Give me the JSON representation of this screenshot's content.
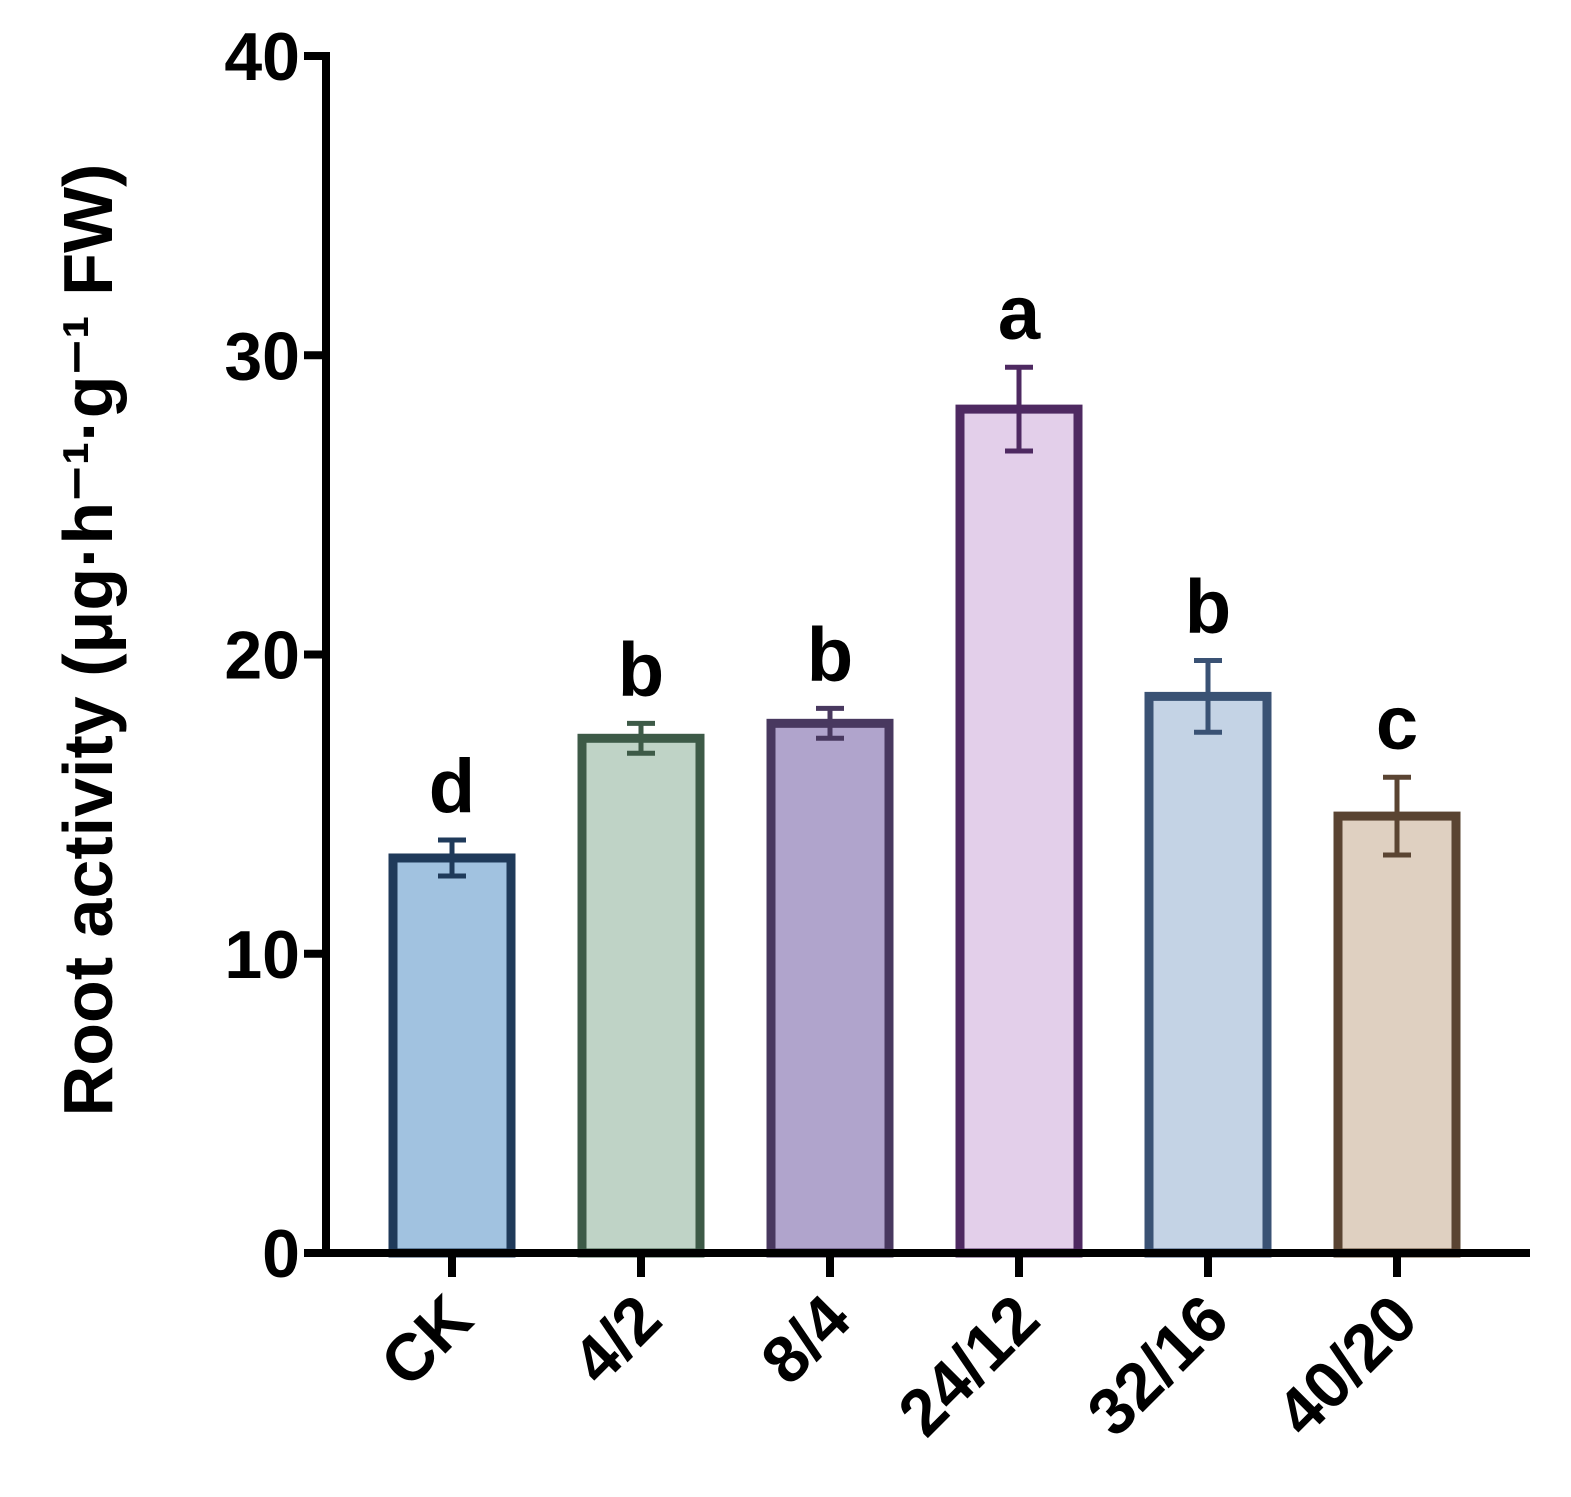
{
  "chart_data": {
    "type": "bar",
    "categories": [
      "CK",
      "4/2",
      "8/4",
      "24/12",
      "32/16",
      "40/20"
    ],
    "values": [
      13.2,
      17.2,
      17.7,
      28.2,
      18.6,
      14.6
    ],
    "errors": [
      0.6,
      0.5,
      0.5,
      1.4,
      1.2,
      1.3
    ],
    "significance": [
      "d",
      "b",
      "b",
      "a",
      "b",
      "c"
    ],
    "ylabel": "Root activity (μg·h⁻¹·g⁻¹ FW)",
    "ylim": [
      0,
      40
    ],
    "yticks": [
      "0",
      "10",
      "20",
      "30",
      "40"
    ],
    "ytick_values": [
      0,
      10,
      20,
      30,
      40
    ],
    "grid": false,
    "legend": "none",
    "fill_colors": [
      "#a1c2e0",
      "#bfd3c6",
      "#b0a4cc",
      "#e3cfea",
      "#c4d3e5",
      "#dfd0c1"
    ],
    "edge_colors": [
      "#1f3a5a",
      "#3d5a47",
      "#48385f",
      "#4e2961",
      "#3a5274",
      "#5a4432"
    ]
  }
}
